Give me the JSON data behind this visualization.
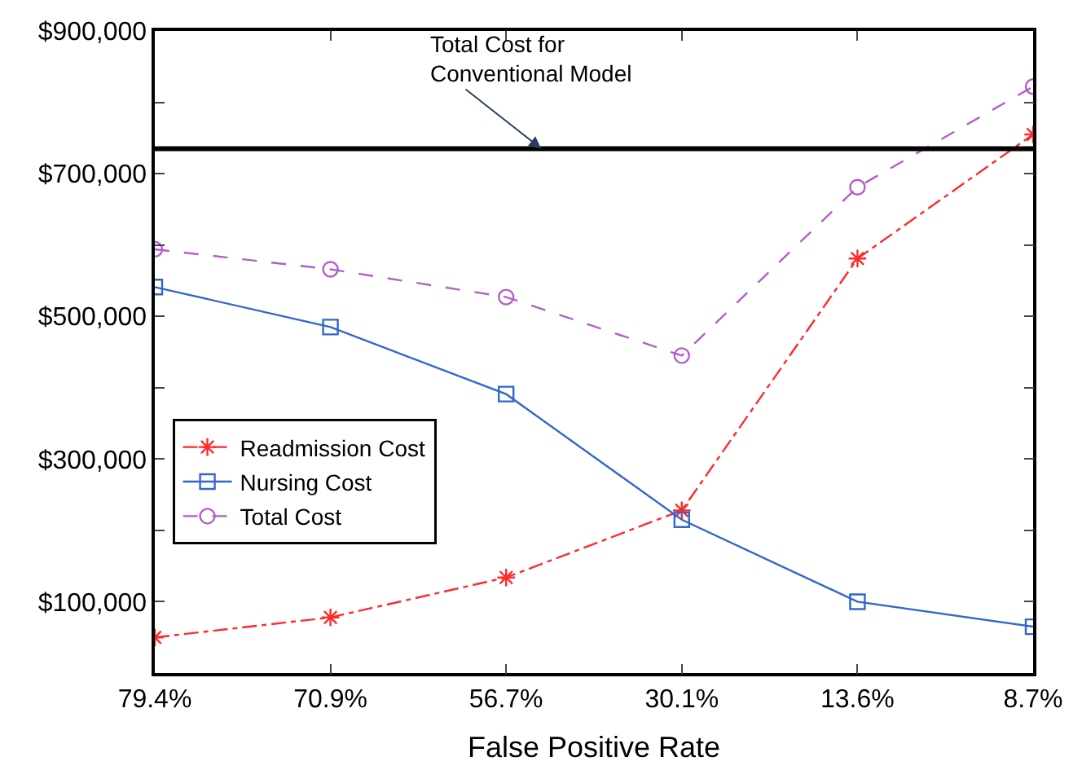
{
  "chart_data": {
    "type": "line",
    "xlabel": "False Positive Rate",
    "categories": [
      "79.4%",
      "70.9%",
      "56.7%",
      "30.1%",
      "13.6%",
      "8.7%"
    ],
    "series": [
      {
        "name": "Readmission Cost",
        "color": "#ff2a2a",
        "marker": "cross",
        "line_style": "dashdot",
        "values": [
          50000,
          78000,
          134000,
          228000,
          581000,
          755000
        ]
      },
      {
        "name": "Nursing Cost",
        "color": "#3366cc",
        "marker": "square",
        "line_style": "solid",
        "values": [
          541000,
          485000,
          391000,
          215000,
          100000,
          65000
        ]
      },
      {
        "name": "Total Cost",
        "color": "#b45ec8",
        "marker": "circle",
        "line_style": "dashed",
        "values": [
          594000,
          566000,
          527000,
          445000,
          681000,
          822000
        ]
      }
    ],
    "ylim": [
      0,
      900000
    ],
    "yticks": [
      {
        "value": 100000,
        "label": "$100,000"
      },
      {
        "value": 200000,
        "label": null
      },
      {
        "value": 300000,
        "label": "$300,000"
      },
      {
        "value": 400000,
        "label": null
      },
      {
        "value": 500000,
        "label": "$500,000"
      },
      {
        "value": 600000,
        "label": null
      },
      {
        "value": 700000,
        "label": "$700,000"
      },
      {
        "value": 800000,
        "label": null
      },
      {
        "value": 900000,
        "label": "$900,000"
      }
    ],
    "ref_lines": [
      {
        "axis": "y",
        "value": 735000,
        "color": "#000000",
        "line_style": "solid",
        "label": "Total Cost for\nConventional Model"
      }
    ],
    "legend": "bottom left"
  }
}
